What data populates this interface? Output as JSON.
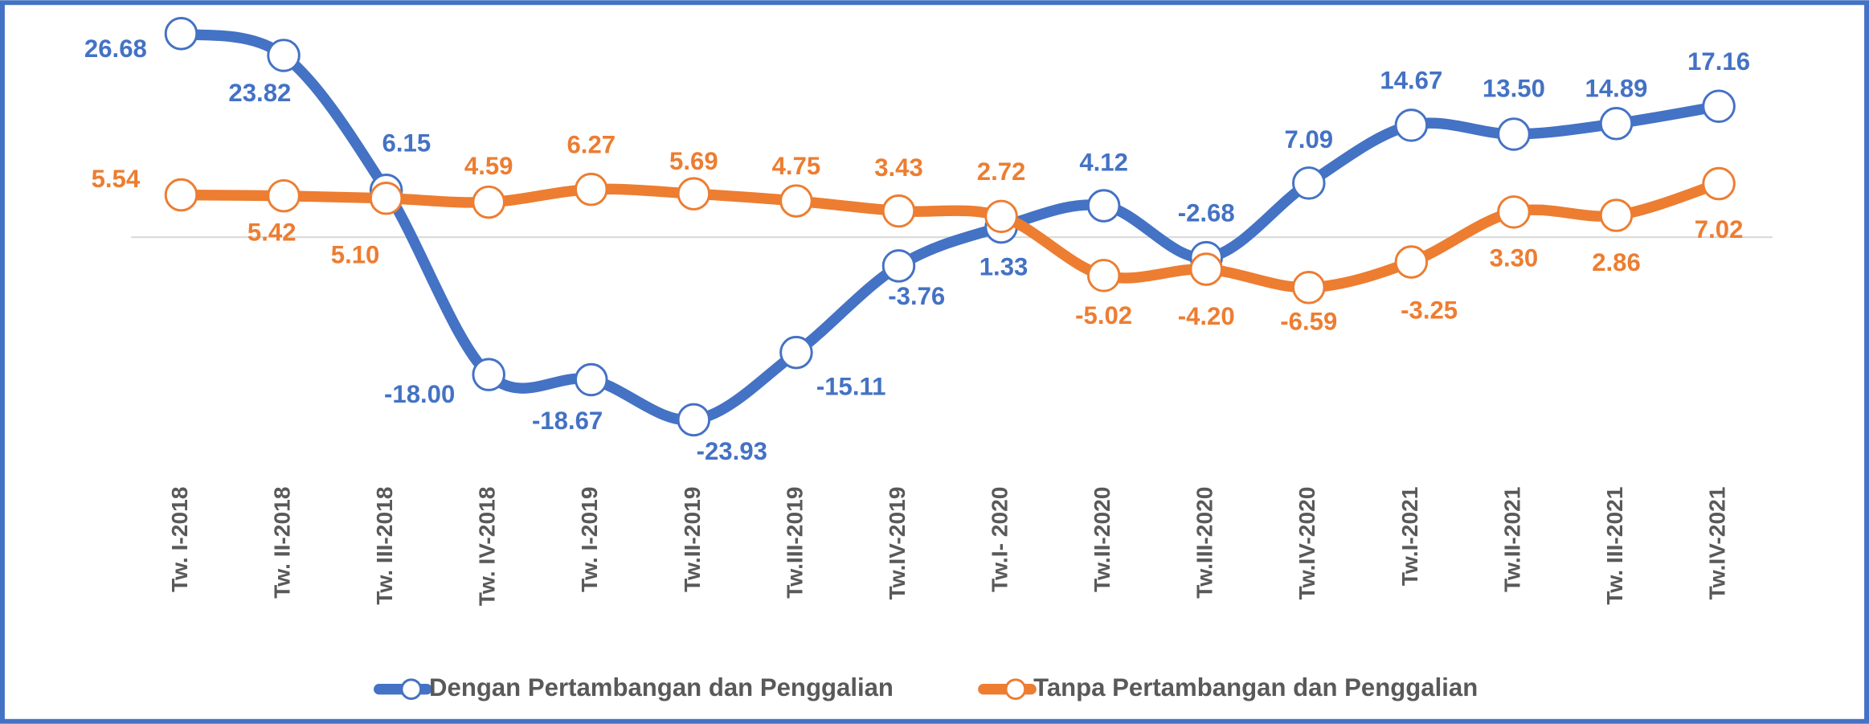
{
  "chart_data": {
    "type": "line",
    "categories": [
      "Tw. I-2018",
      "Tw. II-2018",
      "Tw. III-2018",
      "Tw. IV-2018",
      "Tw. I-2019",
      "Tw.II-2019",
      "Tw.III-2019",
      "Tw.IV-2019",
      "Tw.I- 2020",
      "Tw.II-2020",
      "Tw.III-2020",
      "Tw.IV-2020",
      "Tw.I-2021",
      "Tw.II-2021",
      "Tw. III-2021",
      "Tw.IV-2021"
    ],
    "series": [
      {
        "name": "Dengan Pertambangan dan Penggalian",
        "color": "#4472c4",
        "values": [
          26.68,
          23.82,
          6.15,
          -18.0,
          -18.67,
          -23.93,
          -15.11,
          -3.76,
          1.33,
          4.12,
          -2.68,
          7.09,
          14.67,
          13.5,
          14.89,
          17.16
        ],
        "value_labels": [
          "26.68",
          "23.82",
          "6.15",
          "-18.00",
          "-18.67",
          "-23.93",
          "-15.11",
          "-3.76",
          "1.33",
          "4.12",
          "-2.68",
          "7.09",
          "14.67",
          "13.50",
          "14.89",
          "17.16"
        ]
      },
      {
        "name": "Tanpa Pertambangan dan Penggalian",
        "color": "#ed7d31",
        "values": [
          5.54,
          5.42,
          5.1,
          4.59,
          6.27,
          5.69,
          4.75,
          3.43,
          2.72,
          -5.02,
          -4.2,
          -6.59,
          -3.25,
          3.3,
          2.86,
          7.02
        ],
        "value_labels": [
          "5.54",
          "5.42",
          "5.10",
          "4.59",
          "6.27",
          "5.69",
          "4.75",
          "3.43",
          "2.72",
          "-5.02",
          "-4.20",
          "-6.59",
          "-3.25",
          "3.30",
          "2.86",
          "7.02"
        ]
      }
    ],
    "legend": "bottom"
  }
}
